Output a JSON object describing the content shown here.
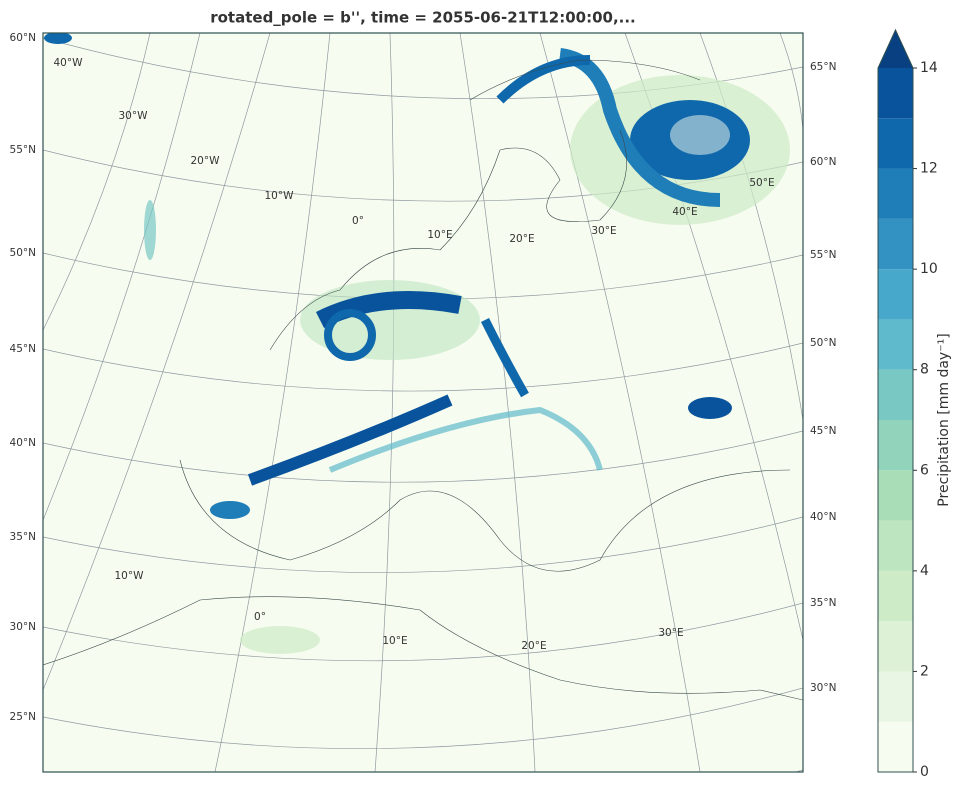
{
  "title": "rotated_pole = b'', time = 2055-06-21T12:00:00,...",
  "map": {
    "left_lat_labels": [
      "60°N",
      "55°N",
      "50°N",
      "45°N",
      "40°N",
      "35°N",
      "30°N",
      "25°N"
    ],
    "right_lat_labels": [
      "65°N",
      "60°N",
      "55°N",
      "50°N",
      "45°N",
      "40°N",
      "35°N",
      "30°N"
    ],
    "upper_lon_labels": [
      "40°W",
      "30°W",
      "20°W",
      "10°W",
      "0°",
      "10°E",
      "20°E",
      "30°E",
      "40°E",
      "50°E"
    ],
    "lower_lon_labels": [
      "10°W",
      "0°",
      "10°E",
      "20°E",
      "30°E"
    ]
  },
  "colorbar": {
    "label": "Precipitation [mm day⁻¹]",
    "lim": [
      0,
      14
    ],
    "ticks": [
      0,
      2,
      4,
      6,
      8,
      10,
      12,
      14
    ],
    "levels": [
      0,
      1,
      2,
      3,
      4,
      5,
      6,
      7,
      8,
      9,
      10,
      11,
      12,
      13,
      14
    ],
    "colors": [
      "#f7fcf0",
      "#e9f6e3",
      "#dcf1d6",
      "#cdebc6",
      "#bde5bf",
      "#a9ddb7",
      "#92d3bc",
      "#79c8c4",
      "#5fbbcb",
      "#47a8cc",
      "#3392c2",
      "#1f7db8",
      "#0e68ab",
      "#08539b"
    ],
    "extend_color": "#084081"
  }
}
